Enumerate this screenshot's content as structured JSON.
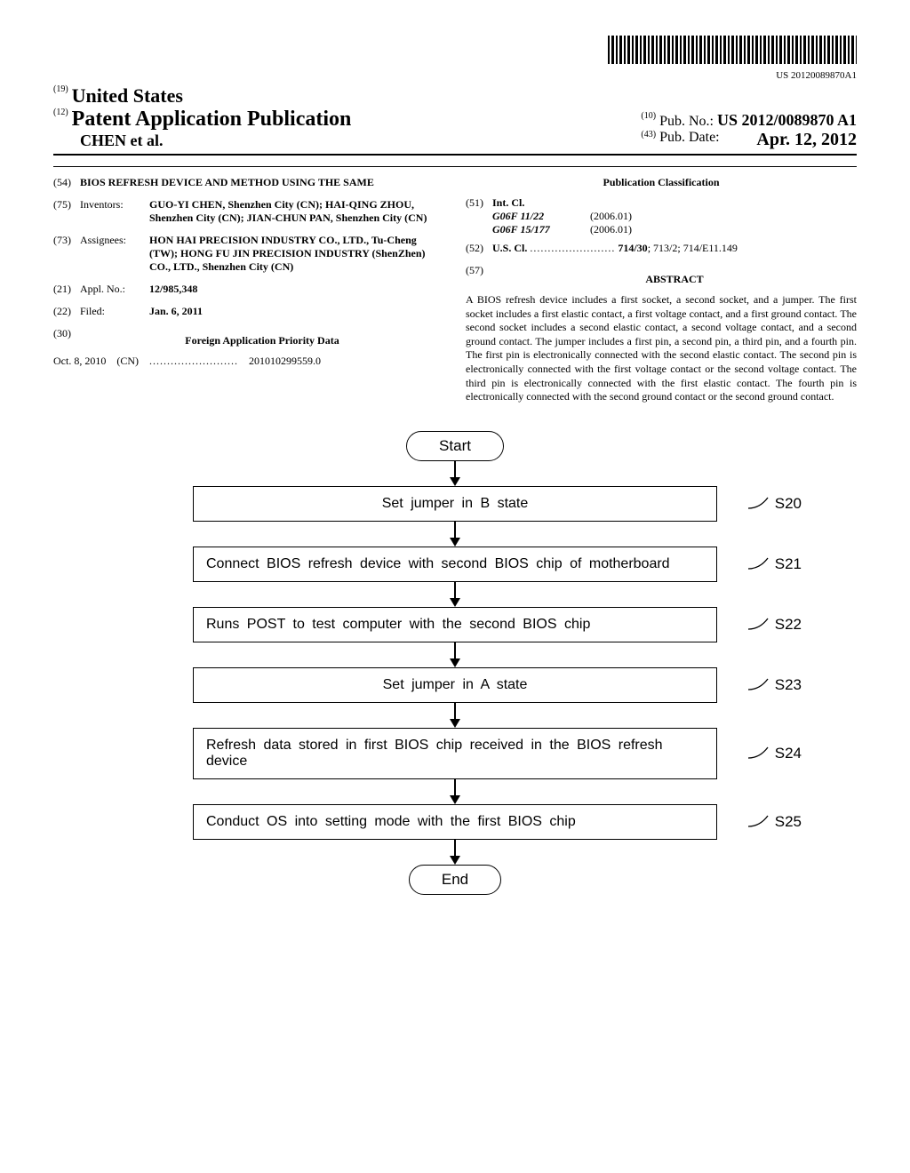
{
  "barcode": {
    "number": "US 20120089870A1"
  },
  "header": {
    "country_num": "(19)",
    "country": "United States",
    "pub_type_num": "(12)",
    "pub_type": "Patent Application Publication",
    "authors": "CHEN et al.",
    "pub_no_num": "(10)",
    "pub_no_label": "Pub. No.:",
    "pub_no": "US 2012/0089870 A1",
    "pub_date_num": "(43)",
    "pub_date_label": "Pub. Date:",
    "pub_date": "Apr. 12, 2012"
  },
  "left": {
    "title_num": "(54)",
    "title": "BIOS REFRESH DEVICE AND METHOD USING THE SAME",
    "inventors_num": "(75)",
    "inventors_label": "Inventors:",
    "inventors": "GUO-YI CHEN, Shenzhen City (CN); HAI-QING ZHOU, Shenzhen City (CN); JIAN-CHUN PAN, Shenzhen City (CN)",
    "assignees_num": "(73)",
    "assignees_label": "Assignees:",
    "assignees": "HON HAI PRECISION INDUSTRY CO., LTD., Tu-Cheng (TW); HONG FU JIN PRECISION INDUSTRY (ShenZhen) CO., LTD., Shenzhen City (CN)",
    "appl_num_num": "(21)",
    "appl_num_label": "Appl. No.:",
    "appl_num": "12/985,348",
    "filed_num": "(22)",
    "filed_label": "Filed:",
    "filed": "Jan. 6, 2011",
    "priority_num": "(30)",
    "priority_heading": "Foreign Application Priority Data",
    "priority_date": "Oct. 8, 2010",
    "priority_country": "(CN)",
    "priority_dots": ".........................",
    "priority_app": "201010299559.0"
  },
  "right": {
    "classification_heading": "Publication Classification",
    "intcl_num": "(51)",
    "intcl_label": "Int. Cl.",
    "intcl1_code": "G06F 11/22",
    "intcl1_date": "(2006.01)",
    "intcl2_code": "G06F 15/177",
    "intcl2_date": "(2006.01)",
    "uscl_num": "(52)",
    "uscl_label": "U.S. Cl.",
    "uscl_dots": "........................",
    "uscl_bold": "714/30",
    "uscl_rest": "; 713/2; 714/E11.149",
    "abstract_num": "(57)",
    "abstract_heading": "ABSTRACT",
    "abstract": "A BIOS refresh device includes a first socket, a second socket, and a jumper. The first socket includes a first elastic contact, a first voltage contact, and a first ground contact. The second socket includes a second elastic contact, a second voltage contact, and a second ground contact. The jumper includes a first pin, a second pin, a third pin, and a fourth pin. The first pin is electronically connected with the second elastic contact. The second pin is electronically connected with the first voltage contact or the second voltage contact. The third pin is electronically connected with the first elastic contact. The fourth pin is electronically connected with the second ground contact or the second ground contact."
  },
  "flowchart": {
    "start": "Start",
    "end": "End",
    "steps": [
      {
        "text": "Set jumper in B state",
        "label": "S20",
        "centered": true
      },
      {
        "text": "Connect BIOS refresh device with second BIOS chip of motherboard",
        "label": "S21",
        "centered": false
      },
      {
        "text": "Runs POST to test computer with the second BIOS chip",
        "label": "S22",
        "centered": false
      },
      {
        "text": "Set jumper in A state",
        "label": "S23",
        "centered": true
      },
      {
        "text": "Refresh data stored in first BIOS chip received in the BIOS refresh device",
        "label": "S24",
        "centered": false
      },
      {
        "text": "Conduct OS into setting mode with the first BIOS chip",
        "label": "S25",
        "centered": false
      }
    ]
  }
}
